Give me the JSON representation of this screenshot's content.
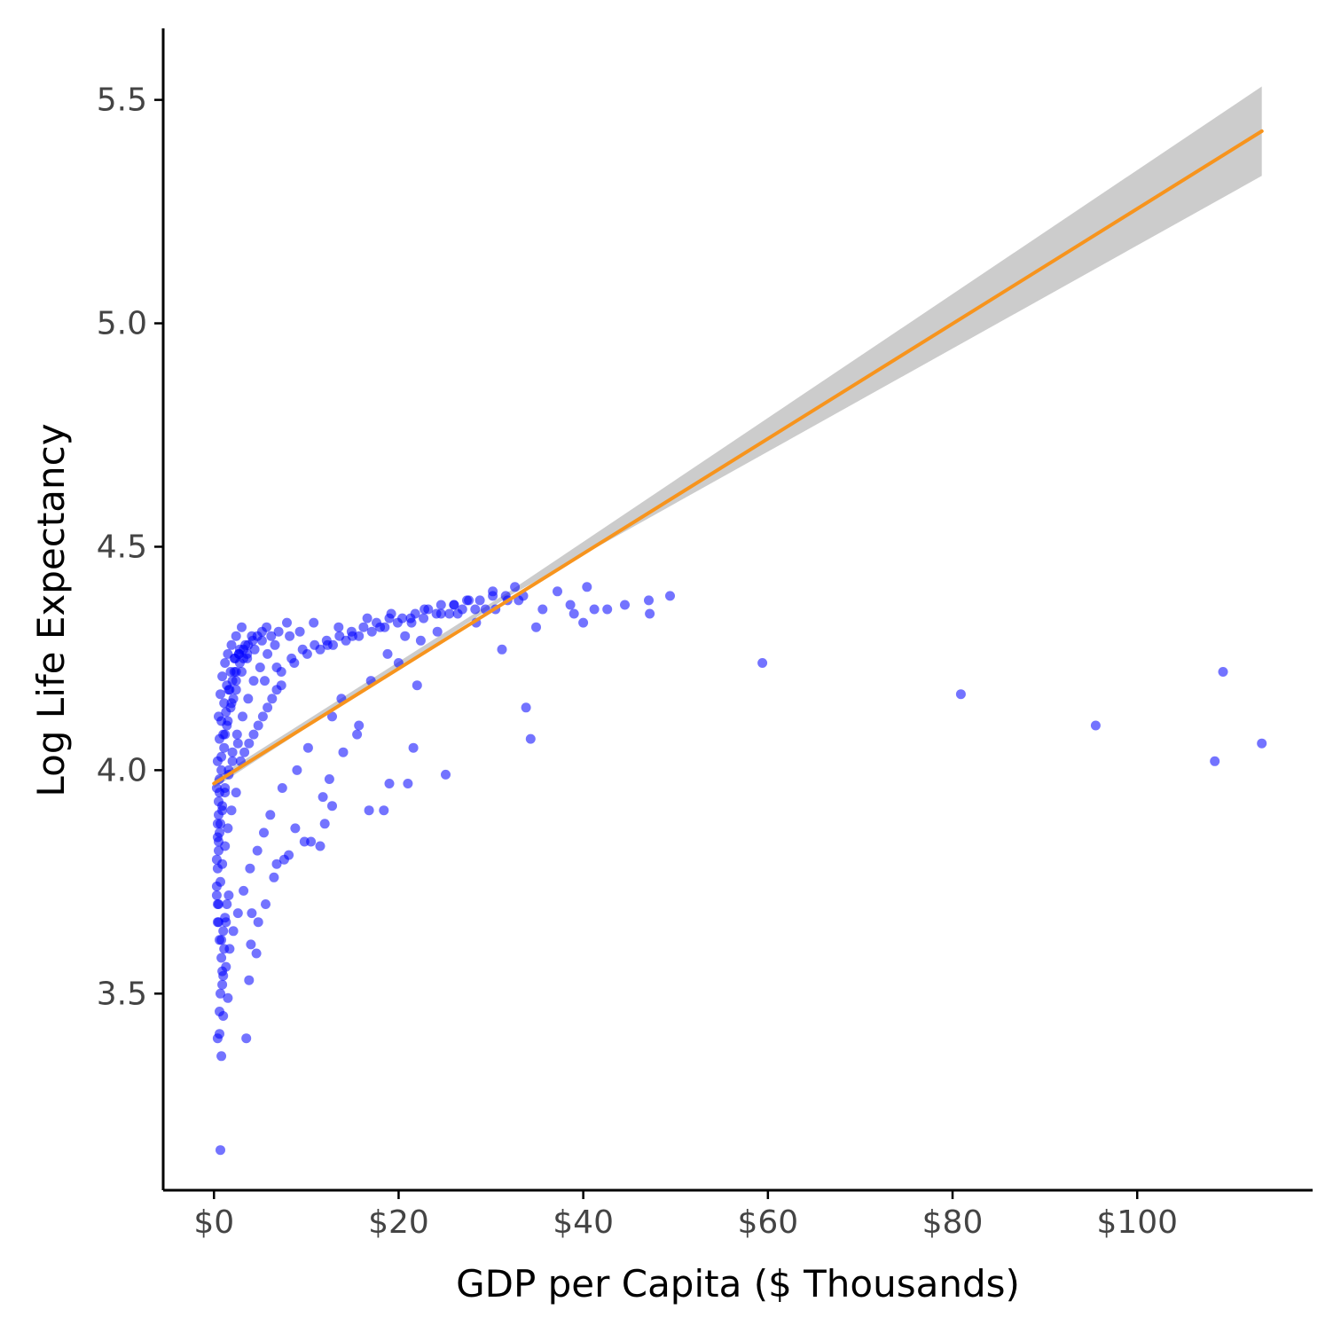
{
  "chart_data": {
    "type": "scatter",
    "title": "",
    "xlabel": "GDP per Capita ($ Thousands)",
    "ylabel": "Log Life Expectancy",
    "xlim": [
      -5.5,
      119
    ],
    "ylim": [
      3.06,
      5.66
    ],
    "x_ticks": [
      0,
      20,
      40,
      60,
      80,
      100
    ],
    "x_tick_labels": [
      "$0",
      "$20",
      "$40",
      "$60",
      "$80",
      "$100"
    ],
    "y_ticks": [
      3.5,
      4.0,
      4.5,
      5.0,
      5.5
    ],
    "y_tick_labels": [
      "3.5",
      "4.0",
      "4.5",
      "5.0",
      "5.5"
    ],
    "grid": false,
    "legend": "none",
    "colors": {
      "points": "#0000ff",
      "fit_line": "#f7941d",
      "ci_band": "#cccccc"
    },
    "series": [
      {
        "kind": "points",
        "x": [
          0.7,
          0.8,
          0.4,
          0.6,
          1.0,
          1.5,
          0.9,
          3.5,
          3.8,
          4.0,
          4.6,
          4.1,
          4.8,
          5.6,
          6.5,
          6.8,
          7.6,
          8.1,
          9.8,
          8.8,
          10.5,
          11.5,
          12.0,
          11.8,
          12.8,
          12.5,
          14.0,
          15.5,
          16.8,
          18.4,
          19.0,
          21.0,
          21.6,
          25.1,
          22.0,
          33.8,
          34.3,
          59.4,
          80.9,
          95.5,
          108.4,
          109.3,
          113.5,
          31.2,
          34.9,
          39.0,
          40.0,
          41.2,
          44.5,
          47.2,
          49.4,
          37.2,
          35.6,
          33.0,
          38.6,
          40.4,
          42.6,
          47.1,
          8.2,
          9.3,
          10.8,
          12.3,
          13.5,
          15.0,
          16.6,
          18.0,
          19.2,
          21.4,
          22.8,
          24.6,
          26.0,
          27.6,
          29.4,
          30.2,
          31.8,
          32.6,
          33.5,
          28.4,
          26.4,
          30.5,
          20.7,
          18.8,
          22.4,
          24.2,
          20.0,
          17.0,
          13.8,
          15.7,
          12.8,
          10.2,
          9.0,
          7.4,
          6.1,
          5.4,
          4.7,
          3.9,
          3.2,
          2.6,
          2.1,
          1.7,
          1.3,
          1.0,
          0.8,
          0.6,
          0.5,
          0.4,
          0.3,
          0.3,
          0.4,
          0.5,
          0.6,
          0.8,
          1.1,
          1.4,
          1.9,
          2.4,
          3.0,
          3.6,
          4.4,
          5.2,
          6.2,
          7.0,
          7.9,
          6.6,
          5.8,
          5.0,
          4.3,
          3.7,
          3.1,
          2.5,
          2.0,
          1.6,
          1.2,
          0.9,
          0.7,
          0.5,
          0.4,
          0.3,
          0.4,
          0.5,
          0.6,
          0.8,
          1.0,
          1.3,
          1.7,
          2.2,
          2.7,
          3.4,
          4.1,
          0.5,
          0.7,
          0.9,
          1.2,
          1.5,
          1.9,
          2.4,
          3.0,
          2.8,
          2.3,
          1.8,
          1.4,
          1.1,
          0.8,
          0.6,
          0.4,
          0.3,
          0.5,
          0.6,
          0.9,
          1.2,
          1.6,
          2.0,
          2.6,
          0.4,
          0.5,
          0.7,
          0.9,
          1.2,
          1.5,
          1.9,
          2.4,
          5.5,
          6.8,
          8.4,
          9.6,
          10.9,
          12.2,
          13.6,
          14.9,
          16.2,
          17.6,
          19.0,
          20.4,
          21.8,
          23.2,
          24.6,
          26.0,
          27.4,
          28.8,
          30.2,
          31.6,
          7.3,
          8.7,
          10.1,
          11.5,
          12.9,
          14.3,
          15.7,
          17.1,
          18.5,
          19.9,
          21.3,
          22.7,
          24.1,
          25.5,
          26.9,
          28.3,
          2.9,
          3.3,
          3.8,
          4.3,
          4.8,
          5.3,
          5.8,
          6.3,
          6.8,
          7.3,
          2.2,
          2.7,
          3.2,
          3.7,
          4.2,
          4.7,
          5.2,
          5.7,
          1.6,
          2.0,
          2.4,
          2.8,
          3.2,
          3.6,
          1.2,
          1.5,
          1.8,
          2.1,
          2.4,
          0.8,
          1.0,
          1.2,
          1.4,
          0.6,
          0.7,
          0.9,
          1.1,
          1.3,
          1.6
        ],
        "y": [
          3.15,
          3.36,
          3.4,
          3.41,
          3.45,
          3.49,
          3.52,
          3.4,
          3.53,
          3.61,
          3.59,
          3.68,
          3.66,
          3.7,
          3.76,
          3.79,
          3.8,
          3.81,
          3.84,
          3.87,
          3.84,
          3.83,
          3.88,
          3.94,
          3.92,
          3.98,
          4.04,
          4.08,
          3.91,
          3.91,
          3.97,
          3.97,
          4.05,
          3.99,
          4.19,
          4.14,
          4.07,
          4.24,
          4.17,
          4.1,
          4.02,
          4.22,
          4.06,
          4.27,
          4.32,
          4.35,
          4.33,
          4.36,
          4.37,
          4.35,
          4.39,
          4.4,
          4.36,
          4.38,
          4.37,
          4.41,
          4.36,
          4.38,
          4.3,
          4.31,
          4.33,
          4.28,
          4.32,
          4.3,
          4.34,
          4.32,
          4.35,
          4.33,
          4.36,
          4.35,
          4.37,
          4.38,
          4.36,
          4.4,
          4.38,
          4.41,
          4.39,
          4.33,
          4.35,
          4.36,
          4.3,
          4.26,
          4.29,
          4.31,
          4.24,
          4.2,
          4.16,
          4.1,
          4.12,
          4.05,
          4.0,
          3.96,
          3.9,
          3.86,
          3.82,
          3.78,
          3.73,
          3.68,
          3.64,
          3.6,
          3.56,
          3.54,
          3.58,
          3.62,
          3.66,
          3.7,
          3.74,
          3.8,
          3.85,
          3.9,
          3.95,
          4.0,
          4.05,
          4.1,
          4.15,
          4.2,
          4.22,
          4.25,
          4.27,
          4.29,
          4.3,
          4.31,
          4.33,
          4.28,
          4.26,
          4.23,
          4.2,
          4.16,
          4.12,
          4.08,
          4.04,
          4.0,
          3.96,
          3.92,
          3.88,
          3.84,
          3.78,
          3.72,
          3.88,
          3.93,
          3.98,
          4.03,
          4.08,
          4.13,
          4.18,
          4.22,
          4.26,
          4.28,
          4.3,
          4.12,
          4.17,
          4.21,
          4.24,
          4.26,
          4.28,
          4.3,
          4.32,
          4.27,
          4.25,
          4.22,
          4.19,
          4.15,
          4.11,
          4.07,
          4.02,
          3.96,
          3.82,
          3.86,
          3.91,
          3.95,
          3.99,
          4.02,
          4.06,
          3.66,
          3.7,
          3.75,
          3.79,
          3.83,
          3.87,
          3.91,
          3.95,
          4.2,
          4.23,
          4.25,
          4.27,
          4.28,
          4.29,
          4.3,
          4.31,
          4.32,
          4.33,
          4.34,
          4.34,
          4.35,
          4.36,
          4.37,
          4.37,
          4.38,
          4.38,
          4.39,
          4.39,
          4.22,
          4.24,
          4.26,
          4.27,
          4.28,
          4.29,
          4.3,
          4.31,
          4.32,
          4.33,
          4.34,
          4.34,
          4.35,
          4.35,
          4.36,
          4.36,
          4.02,
          4.04,
          4.06,
          4.08,
          4.1,
          4.12,
          4.14,
          4.16,
          4.18,
          4.19,
          4.25,
          4.26,
          4.27,
          4.28,
          4.29,
          4.3,
          4.31,
          4.32,
          4.18,
          4.2,
          4.22,
          4.24,
          4.25,
          4.26,
          4.08,
          4.11,
          4.14,
          4.16,
          4.18,
          3.62,
          3.64,
          3.67,
          3.7,
          3.46,
          3.5,
          3.55,
          3.6,
          3.66,
          3.72
        ]
      },
      {
        "kind": "linear-fit",
        "x": [
          0.0,
          113.5
        ],
        "y": [
          3.97,
          5.43
        ]
      },
      {
        "kind": "confidence-band",
        "x": [
          0.0,
          32.0,
          113.5
        ],
        "y_lower": [
          3.96,
          4.39,
          5.33
        ],
        "y_upper": [
          3.98,
          4.4,
          5.53
        ]
      }
    ]
  }
}
